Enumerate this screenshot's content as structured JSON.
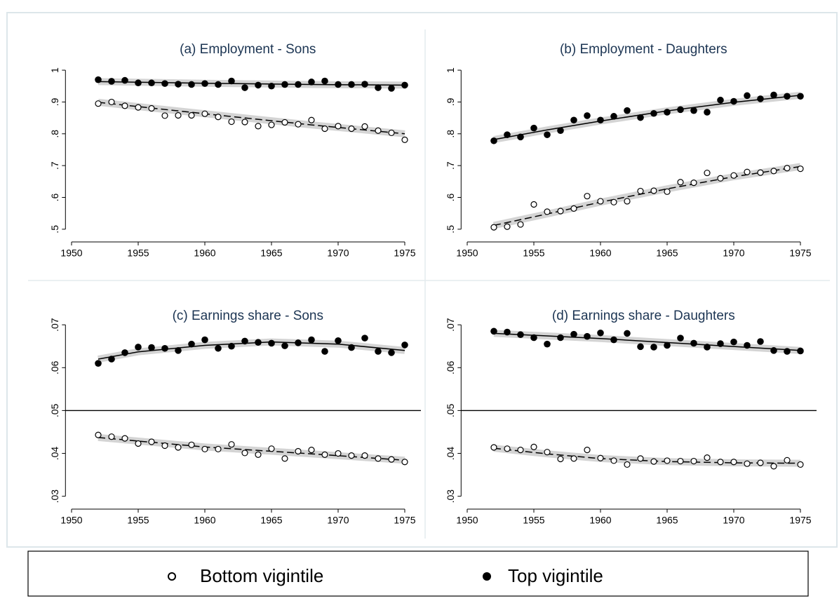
{
  "chart_data": [
    {
      "type": "scatter",
      "title": "(a) Employment - Sons",
      "x": [
        1952,
        1953,
        1954,
        1955,
        1956,
        1957,
        1958,
        1959,
        1960,
        1961,
        1962,
        1963,
        1964,
        1965,
        1966,
        1967,
        1968,
        1969,
        1970,
        1971,
        1972,
        1973,
        1974,
        1975
      ],
      "xlim": [
        1949.7,
        1975.7
      ],
      "xticks": [
        1950,
        1955,
        1960,
        1965,
        1970,
        1975
      ],
      "ylim": [
        0.46,
        1.02
      ],
      "yticks": [
        {
          "value": 0.5,
          "label": ".5"
        },
        {
          "value": 0.6,
          "label": ".6"
        },
        {
          "value": 0.7,
          "label": ".7"
        },
        {
          "value": 0.8,
          "label": ".8"
        },
        {
          "value": 0.9,
          "label": ".9"
        },
        1
      ],
      "series": [
        {
          "name": "Bottom vigintile",
          "color": "#000000",
          "fill": "#ffffff",
          "values": [
            0.895,
            0.9,
            0.888,
            0.883,
            0.88,
            0.857,
            0.858,
            0.858,
            0.863,
            0.853,
            0.838,
            0.837,
            0.824,
            0.828,
            0.836,
            0.83,
            0.843,
            0.816,
            0.824,
            0.816,
            0.823,
            0.81,
            0.803,
            0.781
          ]
        },
        {
          "name": "Top vigintile",
          "color": "#000000",
          "fill": "#000000",
          "values": [
            0.97,
            0.965,
            0.968,
            0.96,
            0.96,
            0.958,
            0.956,
            0.955,
            0.958,
            0.955,
            0.966,
            0.945,
            0.953,
            0.95,
            0.955,
            0.955,
            0.963,
            0.966,
            0.955,
            0.955,
            0.956,
            0.945,
            0.943,
            0.953
          ]
        }
      ],
      "fits": [
        {
          "dashed": true,
          "x": [
            1952,
            1960,
            1968,
            1975
          ],
          "values": [
            0.899,
            0.863,
            0.828,
            0.8
          ]
        },
        {
          "dashed": false,
          "x": [
            1952,
            1960,
            1968,
            1975
          ],
          "values": [
            0.964,
            0.959,
            0.955,
            0.953
          ]
        }
      ]
    },
    {
      "type": "scatter",
      "title": "(b) Employment - Daughters",
      "x": [
        1952,
        1953,
        1954,
        1955,
        1956,
        1957,
        1958,
        1959,
        1960,
        1961,
        1962,
        1963,
        1964,
        1965,
        1966,
        1967,
        1968,
        1969,
        1970,
        1971,
        1972,
        1973,
        1974,
        1975
      ],
      "xlim": [
        1949.7,
        1975.7
      ],
      "xticks": [
        1950,
        1955,
        1960,
        1965,
        1970,
        1975
      ],
      "ylim": [
        0.46,
        1.02
      ],
      "yticks": [
        {
          "value": 0.5,
          "label": ".5"
        },
        {
          "value": 0.6,
          "label": ".6"
        },
        {
          "value": 0.7,
          "label": ".7"
        },
        {
          "value": 0.8,
          "label": ".8"
        },
        {
          "value": 0.9,
          "label": ".9"
        },
        1
      ],
      "series": [
        {
          "color": "#000000",
          "fill": "#ffffff",
          "values": [
            0.506,
            0.508,
            0.515,
            0.578,
            0.555,
            0.557,
            0.565,
            0.604,
            0.588,
            0.585,
            0.588,
            0.62,
            0.621,
            0.618,
            0.648,
            0.646,
            0.677,
            0.66,
            0.669,
            0.68,
            0.678,
            0.683,
            0.692,
            0.69
          ]
        },
        {
          "color": "#000000",
          "fill": "#000000",
          "values": [
            0.778,
            0.797,
            0.79,
            0.818,
            0.797,
            0.81,
            0.843,
            0.857,
            0.843,
            0.855,
            0.873,
            0.851,
            0.864,
            0.868,
            0.876,
            0.873,
            0.868,
            0.906,
            0.902,
            0.92,
            0.91,
            0.922,
            0.918,
            0.918
          ]
        }
      ],
      "fits": [
        {
          "dashed": true,
          "x": [
            1952,
            1956,
            1960,
            1965,
            1970,
            1975
          ],
          "values": [
            0.512,
            0.548,
            0.585,
            0.627,
            0.665,
            0.697
          ]
        },
        {
          "dashed": false,
          "x": [
            1952,
            1956,
            1960,
            1965,
            1970,
            1975
          ],
          "values": [
            0.782,
            0.812,
            0.84,
            0.872,
            0.899,
            0.921
          ]
        }
      ]
    },
    {
      "type": "scatter",
      "title": "(c) Earnings share - Sons",
      "x": [
        1952,
        1953,
        1954,
        1955,
        1956,
        1957,
        1958,
        1959,
        1960,
        1961,
        1962,
        1963,
        1964,
        1965,
        1966,
        1967,
        1968,
        1969,
        1970,
        1971,
        1972,
        1973,
        1974,
        1975
      ],
      "xlim": [
        1949.7,
        1975.7
      ],
      "xticks": [
        1950,
        1955,
        1960,
        1965,
        1970,
        1975
      ],
      "ylim": [
        0.027,
        0.0715
      ],
      "yticks": [
        {
          "value": 0.03,
          "label": ".03"
        },
        {
          "value": 0.04,
          "label": ".04"
        },
        {
          "value": 0.05,
          "label": ".05"
        },
        {
          "value": 0.06,
          "label": ".06"
        },
        {
          "value": 0.07,
          "label": ".07"
        }
      ],
      "hline": 0.05,
      "series": [
        {
          "color": "#000000",
          "fill": "#ffffff",
          "values": [
            0.0443,
            0.0439,
            0.0435,
            0.0423,
            0.0427,
            0.0418,
            0.0414,
            0.042,
            0.041,
            0.041,
            0.0421,
            0.0401,
            0.0397,
            0.0411,
            0.0388,
            0.0405,
            0.0408,
            0.0397,
            0.04,
            0.0395,
            0.0395,
            0.0388,
            0.0386,
            0.038
          ]
        },
        {
          "color": "#000000",
          "fill": "#000000",
          "values": [
            0.061,
            0.062,
            0.0635,
            0.0648,
            0.0647,
            0.0645,
            0.064,
            0.0655,
            0.0665,
            0.0645,
            0.065,
            0.0662,
            0.0659,
            0.0657,
            0.0651,
            0.0658,
            0.0665,
            0.0638,
            0.0663,
            0.0647,
            0.0669,
            0.0638,
            0.0635,
            0.0653
          ]
        }
      ],
      "fits": [
        {
          "dashed": true,
          "x": [
            1952,
            1960,
            1968,
            1975
          ],
          "values": [
            0.0437,
            0.0415,
            0.0399,
            0.0384
          ]
        },
        {
          "dashed": false,
          "x": [
            1952,
            1955,
            1960,
            1965,
            1970,
            1975
          ],
          "values": [
            0.062,
            0.0637,
            0.0652,
            0.066,
            0.0655,
            0.064
          ]
        }
      ]
    },
    {
      "type": "scatter",
      "title": "(d) Earnings share - Daughters",
      "x": [
        1952,
        1953,
        1954,
        1955,
        1956,
        1957,
        1958,
        1959,
        1960,
        1961,
        1962,
        1963,
        1964,
        1965,
        1966,
        1967,
        1968,
        1969,
        1970,
        1971,
        1972,
        1973,
        1974,
        1975
      ],
      "xlim": [
        1949.7,
        1975.7
      ],
      "xticks": [
        1950,
        1955,
        1960,
        1965,
        1970,
        1975
      ],
      "ylim": [
        0.027,
        0.0715
      ],
      "yticks": [
        {
          "value": 0.03,
          "label": ".03"
        },
        {
          "value": 0.04,
          "label": ".04"
        },
        {
          "value": 0.05,
          "label": ".05"
        },
        {
          "value": 0.06,
          "label": ".06"
        },
        {
          "value": 0.07,
          "label": ".07"
        }
      ],
      "hline": 0.05,
      "series": [
        {
          "color": "#000000",
          "fill": "#ffffff",
          "values": [
            0.0414,
            0.0411,
            0.0408,
            0.0415,
            0.0403,
            0.0387,
            0.0388,
            0.0408,
            0.0389,
            0.0383,
            0.0374,
            0.0388,
            0.0381,
            0.0383,
            0.0382,
            0.0382,
            0.039,
            0.038,
            0.038,
            0.0376,
            0.0378,
            0.037,
            0.0384,
            0.0374
          ]
        },
        {
          "color": "#000000",
          "fill": "#000000",
          "values": [
            0.0685,
            0.0683,
            0.0677,
            0.067,
            0.0655,
            0.067,
            0.0678,
            0.0673,
            0.0681,
            0.0665,
            0.068,
            0.0649,
            0.0648,
            0.0652,
            0.0669,
            0.0657,
            0.0648,
            0.0656,
            0.066,
            0.0652,
            0.0661,
            0.064,
            0.0638,
            0.0639
          ]
        }
      ],
      "fits": [
        {
          "dashed": true,
          "x": [
            1952,
            1956,
            1960,
            1965,
            1970,
            1975
          ],
          "values": [
            0.0412,
            0.0399,
            0.0388,
            0.0381,
            0.0378,
            0.0377
          ]
        },
        {
          "dashed": false,
          "x": [
            1952,
            1960,
            1968,
            1975
          ],
          "values": [
            0.068,
            0.0668,
            0.0653,
            0.064
          ]
        }
      ]
    }
  ]
}
